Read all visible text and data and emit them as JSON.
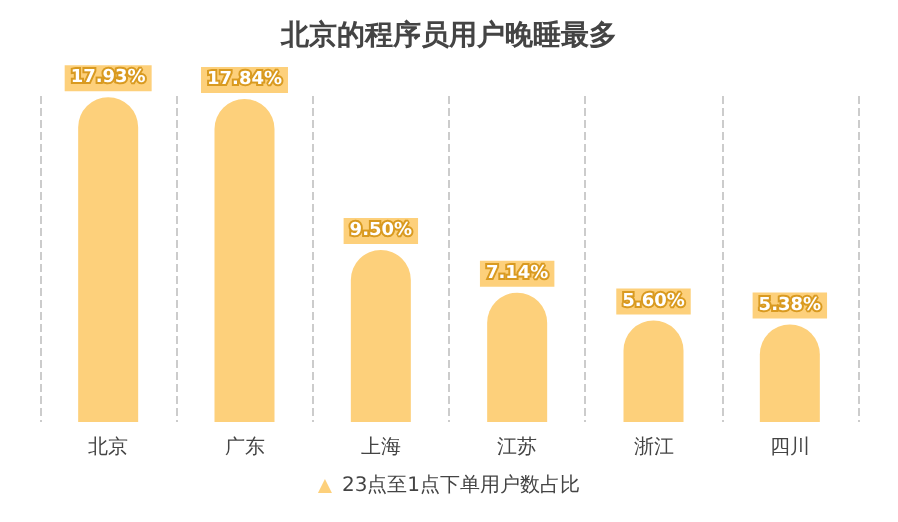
{
  "chart_data": {
    "type": "bar",
    "title": "北京的程序员用户晚睡最多",
    "categories": [
      "北京",
      "广东",
      "上海",
      "江苏",
      "浙江",
      "四川"
    ],
    "series": [
      {
        "name": "23点至1点下单用户数占比",
        "color": "#fdd07b",
        "values": [
          17.93,
          17.84,
          9.5,
          7.14,
          5.6,
          5.38
        ],
        "value_labels": [
          "17.93%",
          "17.84%",
          "9.50%",
          "7.14%",
          "5.60%",
          "5.38%"
        ]
      }
    ],
    "grid": "x",
    "legend": "bottom"
  }
}
